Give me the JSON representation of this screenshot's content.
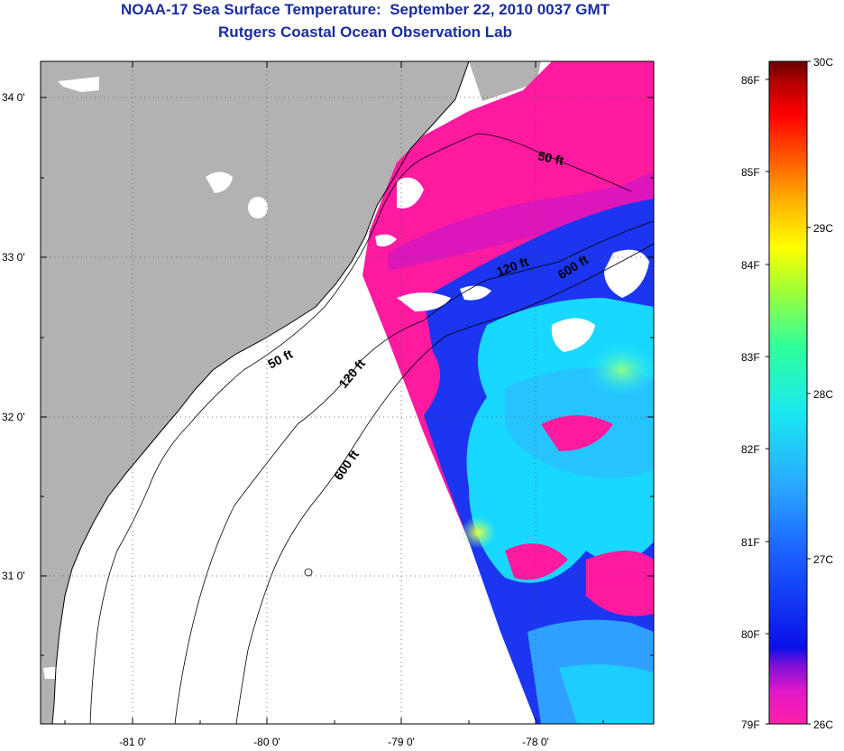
{
  "header": {
    "title": "NOAA-17 Sea Surface Temperature:  September 22, 2010 0037 GMT",
    "subtitle": "Rutgers Coastal Ocean Observation Lab"
  },
  "map": {
    "lat_labels": [
      "34 0'",
      "33 0'",
      "32 0'",
      "31 0'"
    ],
    "lon_labels": [
      "-81 0'",
      "-80 0'",
      "-79 0'",
      "-78 0'"
    ],
    "depth_contours": [
      "50 ft",
      "120 ft",
      "600 ft",
      "50 ft",
      "120 ft",
      "600 ft"
    ]
  },
  "colorbar": {
    "fahrenheit_labels": [
      "86F",
      "85F",
      "84F",
      "83F",
      "82F",
      "81F",
      "80F",
      "79F"
    ],
    "celsius_labels": [
      "30C",
      "29C",
      "28C",
      "27C",
      "26C"
    ],
    "colors": [
      "#ff1aa0",
      "#d010d0",
      "#0a1ae0",
      "#2f7fff",
      "#19e8ff",
      "#6aff7a",
      "#ffff00",
      "#ffa000",
      "#ff2a00",
      "#7a0000"
    ],
    "land_color": "#b2b2b2",
    "nodata_color": "#ffffff"
  }
}
